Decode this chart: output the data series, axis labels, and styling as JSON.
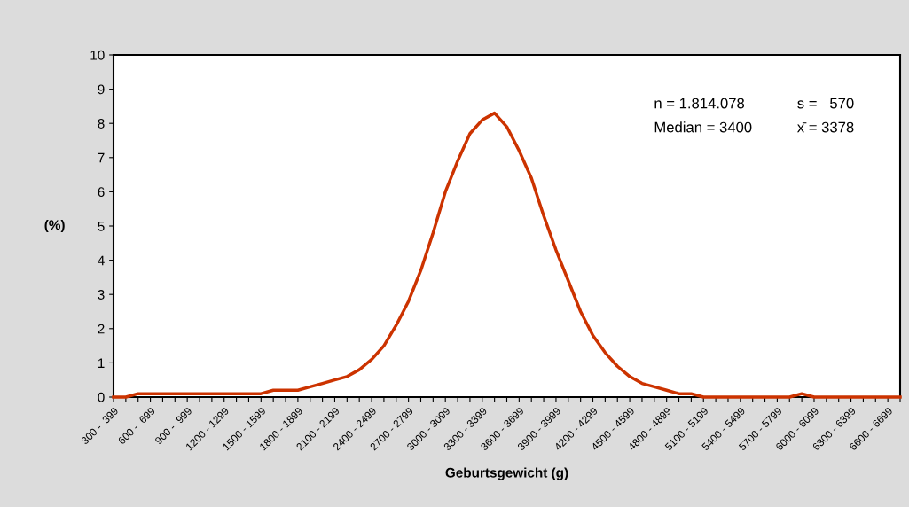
{
  "chart_data": {
    "type": "line",
    "xlabel": "Geburtsgewicht (g)",
    "ylabel": "(%)",
    "categories": [
      "300 -  399",
      null,
      null,
      "600 -  699",
      null,
      null,
      "900 -  999",
      null,
      null,
      "1200 - 1299",
      null,
      null,
      "1500 - 1599",
      null,
      null,
      "1800 - 1899",
      null,
      null,
      "2100 - 2199",
      null,
      null,
      "2400 - 2499",
      null,
      null,
      "2700 - 2799",
      null,
      null,
      "3000 - 3099",
      null,
      null,
      "3300 - 3399",
      null,
      null,
      "3600 - 3699",
      null,
      null,
      "3900 - 3999",
      null,
      null,
      "4200 - 4299",
      null,
      null,
      "4500 - 4599",
      null,
      null,
      "4800 - 4899",
      null,
      null,
      "5100 - 5199",
      null,
      null,
      "5400 - 5499",
      null,
      null,
      "5700 - 5799",
      null,
      null,
      "6000 - 6099",
      null,
      null,
      "6300 - 6399",
      null,
      null,
      "6600 - 6699",
      null
    ],
    "series": [
      {
        "color": "#cc3300",
        "values": [
          0,
          0,
          0.1,
          0.1,
          0.1,
          0.1,
          0.1,
          0.1,
          0.1,
          0.1,
          0.1,
          0.1,
          0.1,
          0.2,
          0.2,
          0.2,
          0.3,
          0.4,
          0.5,
          0.6,
          0.8,
          1.1,
          1.5,
          2.1,
          2.8,
          3.7,
          4.8,
          6.0,
          6.9,
          7.7,
          8.1,
          8.3,
          7.9,
          7.2,
          6.4,
          5.3,
          4.3,
          3.4,
          2.5,
          1.8,
          1.3,
          0.9,
          0.6,
          0.4,
          0.3,
          0.2,
          0.1,
          0.1,
          0,
          0,
          0,
          0,
          0,
          0,
          0,
          0,
          0.1,
          0,
          0,
          0,
          0,
          0,
          0,
          0,
          0
        ]
      }
    ],
    "ylim": [
      0,
      10
    ],
    "yticks": [
      0,
      1,
      2,
      3,
      4,
      5,
      6,
      7,
      8,
      9,
      10
    ],
    "grid": false,
    "legend": false,
    "marker": "none",
    "line_style": "solid",
    "annotations": [
      "n = 1.814.078",
      "s =   570",
      "Median = 3400",
      "x̄ = 3378"
    ]
  }
}
